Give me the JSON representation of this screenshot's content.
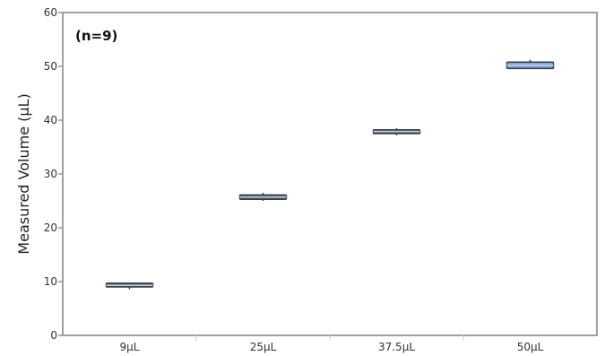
{
  "chart_data": {
    "type": "box",
    "annotation": "(n=9)",
    "ylabel": "Measured Volume (μL)",
    "xlabel": "",
    "ylim": [
      0,
      60
    ],
    "yticks": [
      0,
      10,
      20,
      30,
      40,
      50,
      60
    ],
    "categories": [
      "9μL",
      "25μL",
      "37.5μL",
      "50μL"
    ],
    "boxes": [
      {
        "category": "9μL",
        "min": 8.6,
        "q1": 9.0,
        "median": 9.3,
        "q3": 9.7,
        "max": 9.8
      },
      {
        "category": "25μL",
        "min": 25.0,
        "q1": 25.3,
        "median": 25.7,
        "q3": 26.1,
        "max": 26.5
      },
      {
        "category": "37.5μL",
        "min": 37.2,
        "q1": 37.5,
        "median": 37.9,
        "q3": 38.2,
        "max": 38.5
      },
      {
        "category": "50μL",
        "min": 49.5,
        "q1": 49.6,
        "median": 50.2,
        "q3": 50.8,
        "max": 51.2
      }
    ],
    "grid": false,
    "colors": {
      "box_fill_dark": "#5a5f66",
      "box_fill_light": "#7fa6d6",
      "median_line": "#b8d2ef",
      "axis": "#999999"
    }
  }
}
